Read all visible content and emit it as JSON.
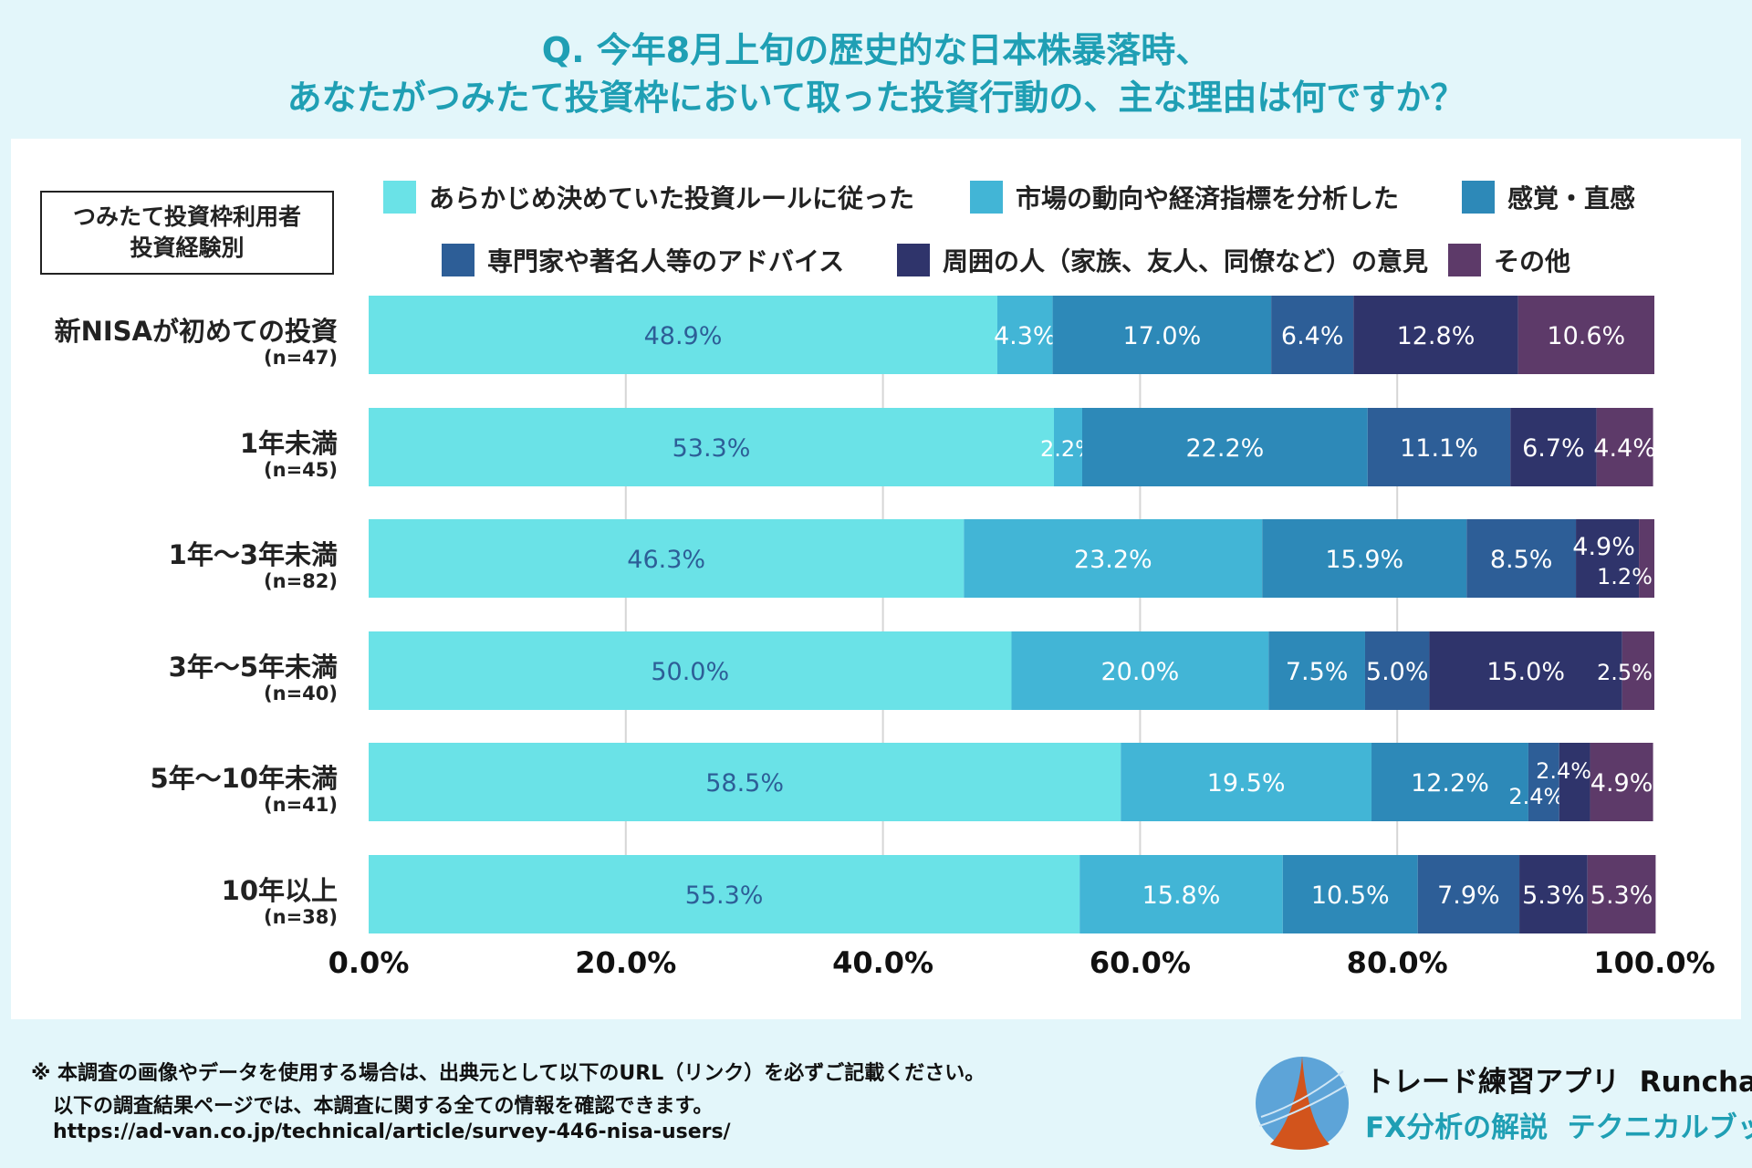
{
  "title": {
    "line1": "Q. 今年8月上旬の歴史的な日本株暴落時、",
    "line2": "あなたがつみたて投資枠において取った投資行動の、主な理由は何ですか？"
  },
  "category_box": {
    "line1": "つみたて投資枠利用者",
    "line2": "投資経験別"
  },
  "chart_data": {
    "type": "bar",
    "orientation": "horizontal",
    "stacked": true,
    "xlim": [
      0,
      100
    ],
    "grid": true,
    "legend_position": "top",
    "x_ticks": [
      "0.0%",
      "20.0%",
      "40.0%",
      "60.0%",
      "80.0%",
      "100.0%"
    ],
    "categories": [
      {
        "label": "新NISAが初めての投資",
        "n": "(n=47)"
      },
      {
        "label": "1年未満",
        "n": "(n=45)"
      },
      {
        "label": "1年～3年未満",
        "n": "(n=82)"
      },
      {
        "label": "3年～5年未満",
        "n": "(n=40)"
      },
      {
        "label": "5年～10年未満",
        "n": "(n=41)"
      },
      {
        "label": "10年以上",
        "n": "(n=38)"
      }
    ],
    "series": [
      {
        "name": "あらかじめ決めていた投資ルールに従った",
        "color": "#6ae2e7",
        "values": [
          48.9,
          53.3,
          46.3,
          50.0,
          58.5,
          55.3
        ]
      },
      {
        "name": "市場の動向や経済指標を分析した",
        "color": "#42b5d6",
        "values": [
          4.3,
          2.2,
          23.2,
          20.0,
          19.5,
          15.8
        ]
      },
      {
        "name": "感覚・直感",
        "color": "#2d89b8",
        "values": [
          17.0,
          22.2,
          15.9,
          7.5,
          12.2,
          10.5
        ]
      },
      {
        "name": "専門家や著名人等のアドバイス",
        "color": "#2d5e97",
        "values": [
          6.4,
          11.1,
          8.5,
          5.0,
          2.4,
          7.9
        ]
      },
      {
        "name": "周囲の人（家族、友人、同僚など）の意見",
        "color": "#2f346b",
        "values": [
          12.8,
          6.7,
          4.9,
          15.0,
          2.4,
          5.3
        ]
      },
      {
        "name": "その他",
        "color": "#5d3a69",
        "values": [
          10.6,
          4.4,
          1.2,
          2.5,
          4.9,
          5.3
        ]
      }
    ]
  },
  "footer": {
    "note1": "※ 本調査の画像やデータを使用する場合は、出典元として以下のURL（リンク）を必ずご記載ください。",
    "note2": "以下の調査結果ページでは、本調査に関する全ての情報を確認できます。",
    "url": "https://ad-van.co.jp/technical/article/survey-446-nisa-users/"
  },
  "brand": {
    "line1": "トレード練習アプリ  Runcha",
    "line2": "FX分析の解説  テクニカルブック",
    "accent": "#1f9fb4"
  }
}
